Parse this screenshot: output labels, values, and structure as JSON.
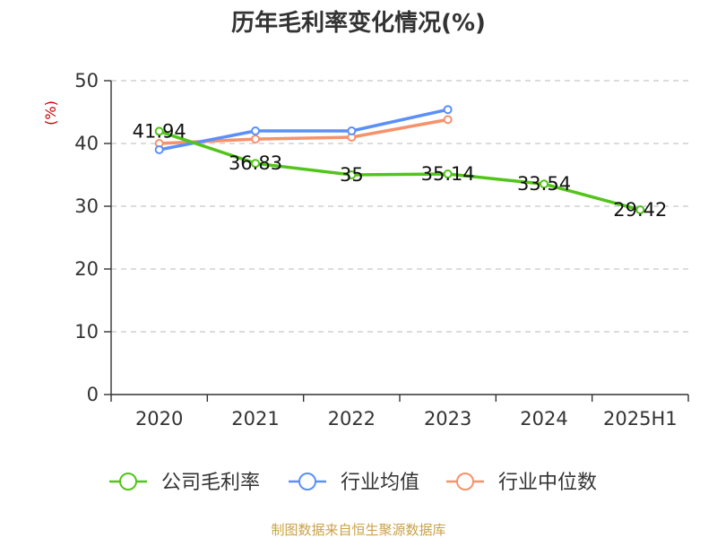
{
  "chart_data": {
    "type": "line",
    "title": "历年毛利率变化情况(%)",
    "ylabel": "(%)",
    "ylabel_color": "#cc0000",
    "categories": [
      "2020",
      "2021",
      "2022",
      "2023",
      "2024",
      "2025H1"
    ],
    "y_ticks": [
      "0",
      "10",
      "20",
      "30",
      "40",
      "50"
    ],
    "ylim": [
      0,
      50
    ],
    "grid": "horizontal-dashed",
    "legend_position": "bottom",
    "series": [
      {
        "name": "公司毛利率",
        "color": "#52c41a",
        "values": [
          41.94,
          36.83,
          35,
          35.14,
          33.54,
          29.42
        ],
        "labels": [
          "41.94",
          "36.83",
          "35",
          "35.14",
          "33.54",
          "29.42"
        ]
      },
      {
        "name": "行业均值",
        "color": "#5b8ff9",
        "values": [
          39.0,
          42.0,
          42.0,
          45.4,
          null,
          null
        ]
      },
      {
        "name": "行业中位数",
        "color": "#f6926b",
        "values": [
          40.0,
          40.7,
          41.0,
          43.8,
          null,
          null
        ]
      }
    ],
    "source": "制图数据来自恒生聚源数据库",
    "source_color": "#c8a24a"
  }
}
